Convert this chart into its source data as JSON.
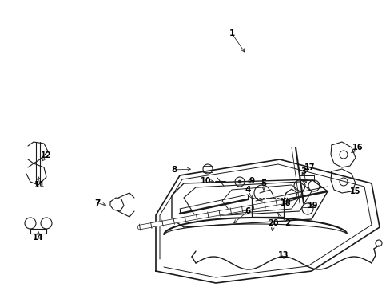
{
  "background_color": "#ffffff",
  "text_color": "#000000",
  "line_color": "#1a1a1a",
  "fig_width": 4.89,
  "fig_height": 3.6,
  "dpi": 100,
  "label_fs": 7.5,
  "label_bold": true
}
